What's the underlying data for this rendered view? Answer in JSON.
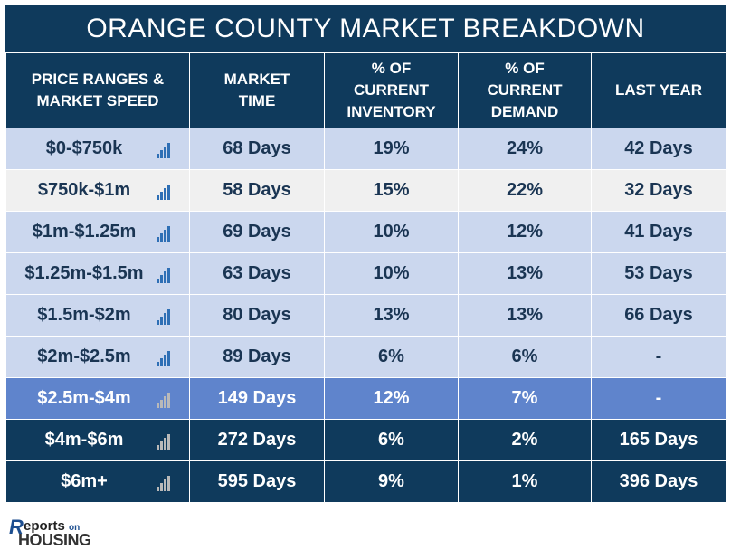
{
  "title": "ORANGE COUNTY MARKET BREAKDOWN",
  "headers": {
    "price": [
      "PRICE RANGES &",
      "MARKET SPEED"
    ],
    "market_time": [
      "MARKET",
      "TIME"
    ],
    "inventory": [
      "% OF",
      "CURRENT",
      "INVENTORY"
    ],
    "demand": [
      "% OF",
      "CURRENT",
      "DEMAND"
    ],
    "last_year": [
      "LAST YEAR"
    ]
  },
  "rows": [
    {
      "price": "$0-$750k",
      "market_time": "68 Days",
      "inventory": "19%",
      "demand": "24%",
      "last_year": "42 Days",
      "style": "light",
      "speed": "fast"
    },
    {
      "price": "$750k-$1m",
      "market_time": "58 Days",
      "inventory": "15%",
      "demand": "22%",
      "last_year": "32 Days",
      "style": "gray",
      "speed": "fast"
    },
    {
      "price": "$1m-$1.25m",
      "market_time": "69 Days",
      "inventory": "10%",
      "demand": "12%",
      "last_year": "41 Days",
      "style": "light",
      "speed": "fast"
    },
    {
      "price": "$1.25m-$1.5m",
      "market_time": "63 Days",
      "inventory": "10%",
      "demand": "13%",
      "last_year": "53 Days",
      "style": "light",
      "speed": "fast"
    },
    {
      "price": "$1.5m-$2m",
      "market_time": "80 Days",
      "inventory": "13%",
      "demand": "13%",
      "last_year": "66 Days",
      "style": "light",
      "speed": "fast"
    },
    {
      "price": "$2m-$2.5m",
      "market_time": "89 Days",
      "inventory": "6%",
      "demand": "6%",
      "last_year": "-",
      "style": "light",
      "speed": "fast"
    },
    {
      "price": "$2.5m-$4m",
      "market_time": "149 Days",
      "inventory": "12%",
      "demand": "7%",
      "last_year": "-",
      "style": "mid",
      "speed": "slow"
    },
    {
      "price": "$4m-$6m",
      "market_time": "272 Days",
      "inventory": "6%",
      "demand": "2%",
      "last_year": "165 Days",
      "style": "dark",
      "speed": "slow"
    },
    {
      "price": "$6m+",
      "market_time": "595 Days",
      "inventory": "9%",
      "demand": "1%",
      "last_year": "396 Days",
      "style": "dark",
      "speed": "slow"
    }
  ],
  "logo": {
    "mark": "R",
    "text": "eports",
    "on": "on",
    "housing": "HOUSING"
  },
  "colors": {
    "header": "#0f3a5c",
    "light_row": "#cbd7ee",
    "gray_row": "#f0f0f0",
    "mid_row": "#5f84cc",
    "bar_fast": "#2e6fb5",
    "bar_slow": "#b9b9b9"
  }
}
